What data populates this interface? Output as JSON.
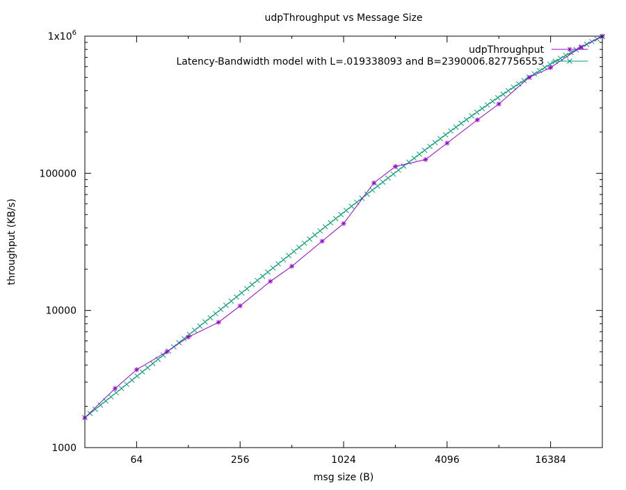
{
  "chart_data": {
    "type": "line",
    "title": "udpThroughput vs Message Size",
    "xlabel": "msg size (B)",
    "ylabel": "throughput (KB/s)",
    "x_scale": "log2",
    "y_scale": "log10",
    "xlim": [
      32,
      32768
    ],
    "ylim": [
      1000,
      1000000
    ],
    "x_ticks": [
      {
        "value": 64,
        "label": "64"
      },
      {
        "value": 256,
        "label": "256"
      },
      {
        "value": 1024,
        "label": "1024"
      },
      {
        "value": 4096,
        "label": "4096"
      },
      {
        "value": 16384,
        "label": "16384"
      }
    ],
    "y_ticks": [
      {
        "value": 1000,
        "label": "1000"
      },
      {
        "value": 10000,
        "label": "10000"
      },
      {
        "value": 100000,
        "label": "100000"
      },
      {
        "value": 1000000,
        "label": "1x10",
        "sup": "6"
      }
    ],
    "legend_position": "top-right",
    "series": [
      {
        "name": "udpThroughput",
        "color": "#9400d3",
        "marker": "star",
        "x": [
          32,
          48,
          64,
          96,
          128,
          192,
          256,
          384,
          512,
          768,
          1024,
          1536,
          2048,
          3072,
          4096,
          6144,
          8192,
          12288,
          16384,
          24576,
          32768
        ],
        "y": [
          1650,
          2700,
          3700,
          5000,
          6400,
          8200,
          10800,
          16300,
          21000,
          32000,
          43000,
          85000,
          112000,
          126000,
          166000,
          245000,
          320000,
          500000,
          590000,
          830000,
          1000000
        ]
      },
      {
        "name": "Latency-Bandwidth model with L=.019338093 and B=2390006.827756553",
        "color": "#009e73",
        "marker": "x",
        "model": {
          "L": 0.019338093,
          "B": 2390006.827756553
        },
        "x_range": [
          32,
          32768
        ],
        "points": 100
      }
    ]
  }
}
